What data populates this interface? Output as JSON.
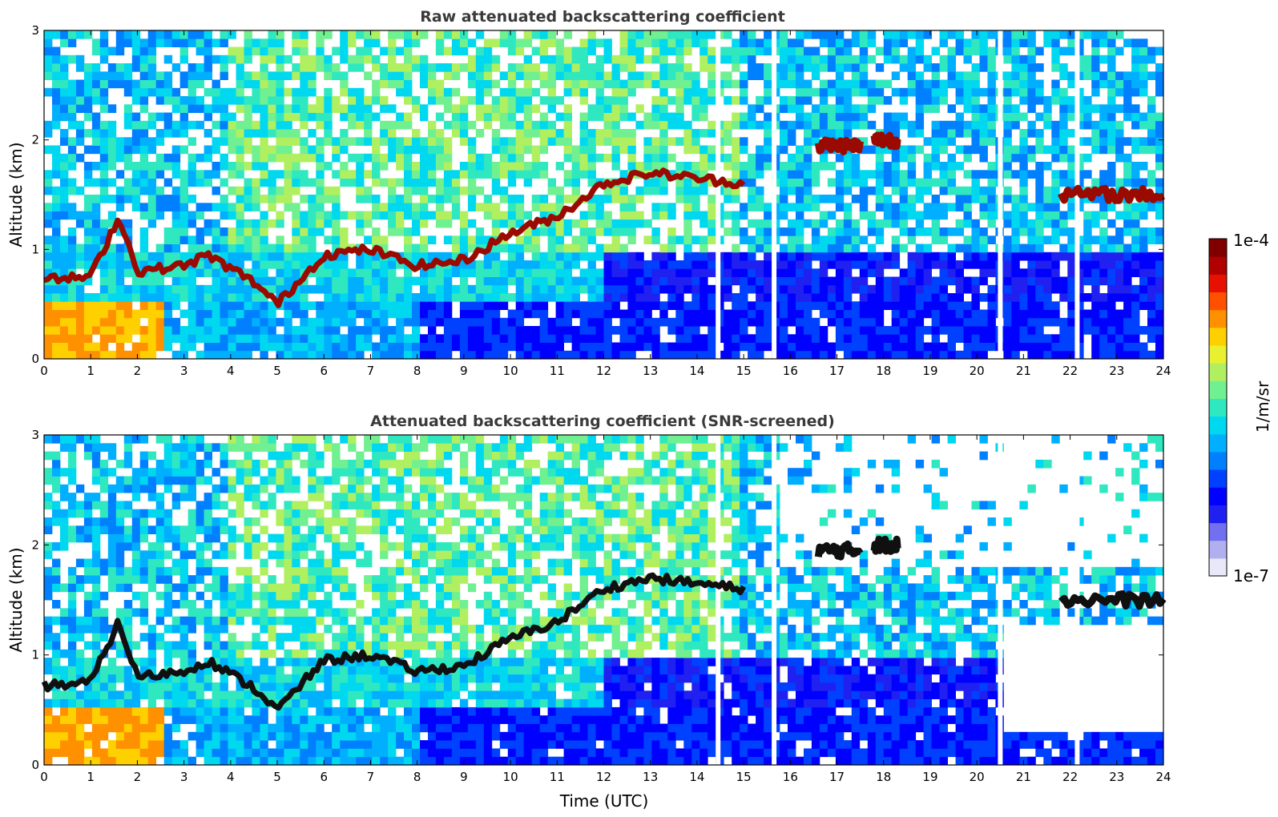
{
  "chart_data": [
    {
      "type": "heatmap",
      "title": "Raw attenuated backscattering coefficient",
      "xlabel": "",
      "ylabel": "Altitude (km)",
      "xlim": [
        0,
        24
      ],
      "ylim": [
        0,
        3
      ],
      "xticks": [
        "0",
        "1",
        "2",
        "3",
        "4",
        "5",
        "6",
        "7",
        "8",
        "9",
        "10",
        "11",
        "12",
        "13",
        "14",
        "15",
        "16",
        "17",
        "18",
        "19",
        "20",
        "21",
        "22",
        "23",
        "24"
      ],
      "yticks": [
        "0",
        "1",
        "2",
        "3"
      ],
      "cloud_layer": [
        {
          "t": 0.0,
          "h": 0.72
        },
        {
          "t": 1.0,
          "h": 0.75
        },
        {
          "t": 1.6,
          "h": 1.3
        },
        {
          "t": 2.0,
          "h": 0.8
        },
        {
          "t": 3.0,
          "h": 0.85
        },
        {
          "t": 3.5,
          "h": 0.95
        },
        {
          "t": 4.5,
          "h": 0.7
        },
        {
          "t": 5.0,
          "h": 0.5
        },
        {
          "t": 6.0,
          "h": 0.95
        },
        {
          "t": 7.0,
          "h": 1.0
        },
        {
          "t": 8.0,
          "h": 0.85
        },
        {
          "t": 9.0,
          "h": 0.9
        },
        {
          "t": 10.0,
          "h": 1.15
        },
        {
          "t": 11.0,
          "h": 1.3
        },
        {
          "t": 12.0,
          "h": 1.6
        },
        {
          "t": 13.0,
          "h": 1.7
        },
        {
          "t": 14.0,
          "h": 1.65
        },
        {
          "t": 15.0,
          "h": 1.6
        }
      ],
      "upper_cloud": [
        {
          "t0": 16.6,
          "t1": 17.5,
          "h": 1.95
        },
        {
          "t0": 17.8,
          "t1": 18.3,
          "h": 2.0
        },
        {
          "t0": 21.8,
          "t1": 24.0,
          "h": 1.5
        }
      ]
    },
    {
      "type": "heatmap",
      "title": "Attenuated backscattering coefficient (SNR-screened)",
      "xlabel": "Time (UTC)",
      "ylabel": "Altitude (km)",
      "xlim": [
        0,
        24
      ],
      "ylim": [
        0,
        3
      ],
      "xticks": [
        "0",
        "1",
        "2",
        "3",
        "4",
        "5",
        "6",
        "7",
        "8",
        "9",
        "10",
        "11",
        "12",
        "13",
        "14",
        "15",
        "16",
        "17",
        "18",
        "19",
        "20",
        "21",
        "22",
        "23",
        "24"
      ],
      "yticks": [
        "0",
        "1",
        "2",
        "3"
      ],
      "cloud_layer": [
        {
          "t": 0.0,
          "h": 0.72
        },
        {
          "t": 1.0,
          "h": 0.75
        },
        {
          "t": 1.6,
          "h": 1.3
        },
        {
          "t": 2.0,
          "h": 0.8
        },
        {
          "t": 3.0,
          "h": 0.85
        },
        {
          "t": 3.5,
          "h": 0.95
        },
        {
          "t": 4.5,
          "h": 0.7
        },
        {
          "t": 5.0,
          "h": 0.5
        },
        {
          "t": 6.0,
          "h": 0.95
        },
        {
          "t": 7.0,
          "h": 1.0
        },
        {
          "t": 8.0,
          "h": 0.85
        },
        {
          "t": 9.0,
          "h": 0.9
        },
        {
          "t": 10.0,
          "h": 1.15
        },
        {
          "t": 11.0,
          "h": 1.3
        },
        {
          "t": 12.0,
          "h": 1.6
        },
        {
          "t": 13.0,
          "h": 1.7
        },
        {
          "t": 14.0,
          "h": 1.65
        },
        {
          "t": 15.0,
          "h": 1.6
        }
      ],
      "upper_cloud": [
        {
          "t0": 16.6,
          "t1": 17.5,
          "h": 1.95
        },
        {
          "t0": 17.8,
          "t1": 18.3,
          "h": 2.0
        },
        {
          "t0": 21.8,
          "t1": 24.0,
          "h": 1.5
        }
      ]
    }
  ],
  "colorbar": {
    "label": "1/m/sr",
    "max_label": "1e-4",
    "min_label": "1e-7",
    "colors": [
      "#e8e8f8",
      "#b0b0f0",
      "#7070f0",
      "#2020f0",
      "#0000ff",
      "#0040ff",
      "#0080ff",
      "#00b0ff",
      "#00d8f0",
      "#30e8c0",
      "#70f090",
      "#b0f060",
      "#e8f030",
      "#ffd000",
      "#ff9000",
      "#ff5000",
      "#e81000",
      "#b00000",
      "#800000"
    ]
  }
}
